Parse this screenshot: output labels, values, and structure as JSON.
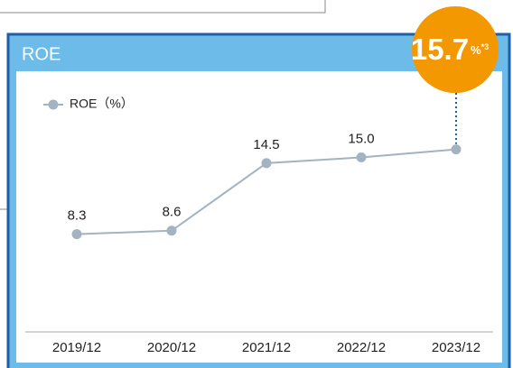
{
  "chart_data": {
    "type": "line",
    "title": "ROE",
    "categories": [
      "2019/12",
      "2020/12",
      "2021/12",
      "2022/12",
      "2023/12"
    ],
    "series": [
      {
        "name": "ROE（%）",
        "color": "#a3b3c1",
        "values": [
          8.3,
          8.6,
          14.5,
          15.0,
          15.7
        ],
        "value_labels": [
          "8.3",
          "8.6",
          "14.5",
          "15.0",
          "15.7"
        ]
      }
    ],
    "ylim": [
      0,
      20
    ],
    "highlight_unit": "%",
    "highlight_note": "*3",
    "highlight_color": "#f39800",
    "legend": "top-left"
  }
}
